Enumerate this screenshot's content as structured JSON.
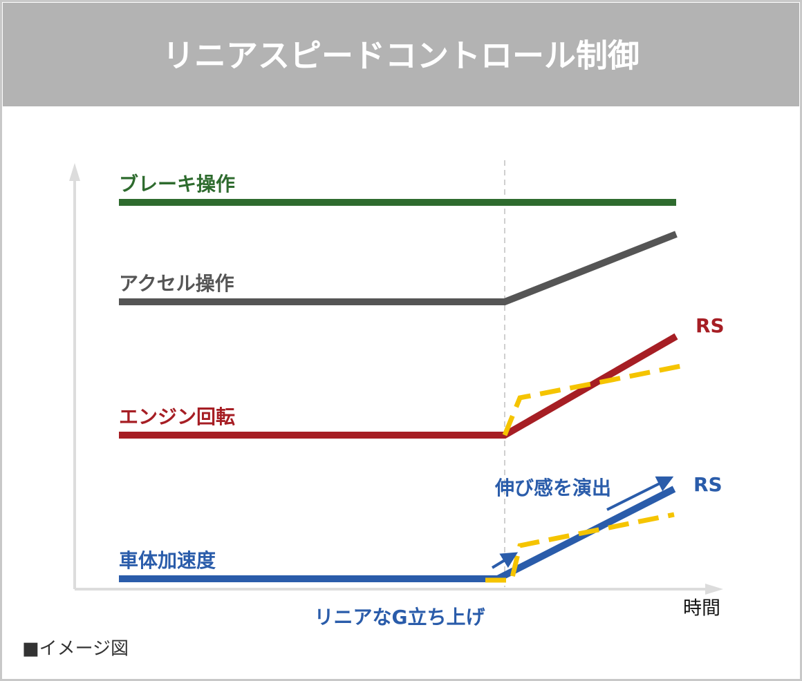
{
  "header": {
    "title": "リニアスピードコントロール制御"
  },
  "lines": [
    {
      "label": "ブレーキ操作"
    },
    {
      "label": "アクセル操作"
    },
    {
      "label": "エンジン回転",
      "end_label": "RS"
    },
    {
      "label": "車体加速度",
      "end_label": "RS"
    }
  ],
  "annotations": {
    "stretch": "伸び感を演出",
    "linear": "リニアなG立ち上げ"
  },
  "x_axis_label": "時間",
  "note": "■イメージ図"
}
